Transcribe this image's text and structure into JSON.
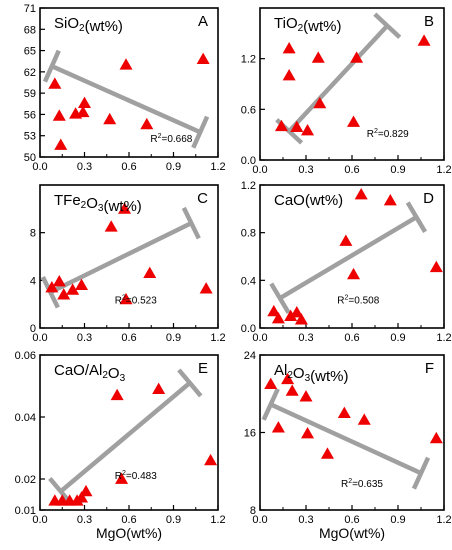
{
  "colors": {
    "marker": "#ee0000",
    "trend": "#a0a0a0",
    "axis": "#000000"
  },
  "x_axis_label": "MgO(wt%)",
  "chart_data": [
    {
      "type": "scatter",
      "letter": "A",
      "title": "SiO2(wt%)",
      "r2_label": "R",
      "r2_sup": "2",
      "r2_value": "=0.668",
      "xlim": [
        0,
        1.2
      ],
      "ylim": [
        50,
        71
      ],
      "xticks": [
        0.0,
        0.3,
        0.6,
        0.9,
        1.2
      ],
      "xtick_labels": [
        "0.0",
        "0.3",
        "0.6",
        "0.9",
        "1.2"
      ],
      "yticks": [
        50,
        53,
        56,
        59,
        62,
        65,
        68,
        71
      ],
      "ytick_labels": [
        "50",
        "53",
        "56",
        "59",
        "62",
        "65",
        "68",
        "71"
      ],
      "points": [
        [
          0.1,
          60.3
        ],
        [
          0.13,
          55.8
        ],
        [
          0.14,
          51.7
        ],
        [
          0.24,
          56.1
        ],
        [
          0.29,
          56.3
        ],
        [
          0.3,
          57.6
        ],
        [
          0.47,
          55.3
        ],
        [
          0.58,
          63.0
        ],
        [
          0.72,
          54.6
        ],
        [
          1.1,
          63.8
        ]
      ],
      "trend": [
        [
          0.08,
          62.8
        ],
        [
          1.08,
          53.5
        ]
      ]
    },
    {
      "type": "scatter",
      "letter": "B",
      "title": "TiO2(wt%)",
      "r2_label": "R",
      "r2_sup": "2",
      "r2_value": "=0.829",
      "xlim": [
        0,
        1.2
      ],
      "ylim": [
        0,
        1.8
      ],
      "xticks": [
        0.0,
        0.3,
        0.6,
        0.9,
        1.2
      ],
      "xtick_labels": [
        "0.0",
        "0.3",
        "0.6",
        "0.9",
        "1.2"
      ],
      "yticks": [
        0.0,
        0.6,
        1.2
      ],
      "ytick_labels": [
        "0.0",
        "0.6",
        "1.2"
      ],
      "points": [
        [
          0.14,
          0.4
        ],
        [
          0.19,
          1.32
        ],
        [
          0.19,
          1.0
        ],
        [
          0.24,
          0.39
        ],
        [
          0.31,
          0.35
        ],
        [
          0.38,
          1.21
        ],
        [
          0.39,
          0.67
        ],
        [
          0.61,
          0.45
        ],
        [
          0.63,
          1.21
        ],
        [
          1.07,
          1.41
        ]
      ],
      "trend": [
        [
          0.19,
          0.34
        ],
        [
          0.83,
          1.59
        ]
      ]
    },
    {
      "type": "scatter",
      "letter": "C",
      "title": "TFe2O3(wt%)",
      "r2_label": "R",
      "r2_sup": "2",
      "r2_value": "=0.523",
      "xlim": [
        0,
        1.2
      ],
      "ylim": [
        0,
        12
      ],
      "xticks": [
        0.0,
        0.3,
        0.6,
        0.9,
        1.2
      ],
      "xtick_labels": [
        "0.0",
        "0.3",
        "0.6",
        "0.9",
        "1.2"
      ],
      "yticks": [
        0,
        4,
        8
      ],
      "ytick_labels": [
        "0",
        "4",
        "8"
      ],
      "points": [
        [
          0.08,
          3.4
        ],
        [
          0.13,
          3.9
        ],
        [
          0.16,
          2.8
        ],
        [
          0.22,
          3.2
        ],
        [
          0.28,
          3.6
        ],
        [
          0.48,
          8.5
        ],
        [
          0.57,
          10.0
        ],
        [
          0.58,
          2.4
        ],
        [
          0.74,
          4.6
        ],
        [
          1.12,
          3.3
        ]
      ],
      "trend": [
        [
          0.07,
          3.0
        ],
        [
          1.02,
          8.8
        ]
      ]
    },
    {
      "type": "scatter",
      "letter": "D",
      "title": "CaO(wt%)",
      "r2_label": "R",
      "r2_sup": "2",
      "r2_value": "=0.508",
      "xlim": [
        0,
        1.2
      ],
      "ylim": [
        0,
        1.2
      ],
      "xticks": [
        0.0,
        0.3,
        0.6,
        0.9,
        1.2
      ],
      "xtick_labels": [
        "0.0",
        "0.3",
        "0.6",
        "0.9",
        "1.2"
      ],
      "yticks": [
        0.0,
        0.4,
        0.8,
        1.2
      ],
      "ytick_labels": [
        "0.0",
        "0.4",
        "0.8",
        "1.2"
      ],
      "points": [
        [
          0.09,
          0.14
        ],
        [
          0.12,
          0.08
        ],
        [
          0.2,
          0.1
        ],
        [
          0.24,
          0.13
        ],
        [
          0.27,
          0.07
        ],
        [
          0.56,
          0.73
        ],
        [
          0.61,
          0.45
        ],
        [
          0.66,
          1.12
        ],
        [
          0.85,
          1.07
        ],
        [
          1.15,
          0.51
        ]
      ],
      "trend": [
        [
          0.13,
          0.25
        ],
        [
          1.02,
          0.93
        ]
      ]
    },
    {
      "type": "scatter",
      "letter": "E",
      "title": "CaO/Al2O3",
      "r2_label": "R",
      "r2_sup": "2",
      "r2_value": "=0.483",
      "xlim": [
        0,
        1.2
      ],
      "ylim": [
        0.01,
        0.06
      ],
      "xticks": [
        0.0,
        0.3,
        0.6,
        0.9,
        1.2
      ],
      "xtick_labels": [
        "0.0",
        "0.3",
        "0.6",
        "0.9",
        "1.2"
      ],
      "yticks": [
        0.01,
        0.02,
        0.04,
        0.06
      ],
      "ytick_labels": [
        "0.01",
        "0.02",
        "0.04",
        "0.06"
      ],
      "points": [
        [
          0.1,
          0.013
        ],
        [
          0.15,
          0.013
        ],
        [
          0.2,
          0.013
        ],
        [
          0.25,
          0.013
        ],
        [
          0.28,
          0.014
        ],
        [
          0.31,
          0.016
        ],
        [
          0.52,
          0.047
        ],
        [
          0.55,
          0.02
        ],
        [
          0.8,
          0.049
        ],
        [
          1.15,
          0.026
        ]
      ],
      "trend": [
        [
          0.14,
          0.016
        ],
        [
          1.01,
          0.051
        ]
      ]
    },
    {
      "type": "scatter",
      "letter": "F",
      "title": "Al2O3(wt%)",
      "r2_label": "R",
      "r2_sup": "2",
      "r2_value": "=0.635",
      "xlim": [
        0,
        1.2
      ],
      "ylim": [
        8,
        24
      ],
      "xticks": [
        0.0,
        0.3,
        0.6,
        0.9,
        1.2
      ],
      "xtick_labels": [
        "0.0",
        "0.3",
        "0.6",
        "0.9",
        "1.2"
      ],
      "yticks": [
        8,
        16,
        24
      ],
      "ytick_labels": [
        "8",
        "16",
        "24"
      ],
      "points": [
        [
          0.07,
          21.0
        ],
        [
          0.12,
          16.5
        ],
        [
          0.18,
          21.5
        ],
        [
          0.21,
          20.3
        ],
        [
          0.3,
          19.7
        ],
        [
          0.31,
          15.9
        ],
        [
          0.44,
          13.8
        ],
        [
          0.55,
          18.0
        ],
        [
          0.68,
          17.3
        ],
        [
          1.15,
          15.4
        ]
      ],
      "trend": [
        [
          0.07,
          18.9
        ],
        [
          1.05,
          11.8
        ]
      ]
    }
  ]
}
